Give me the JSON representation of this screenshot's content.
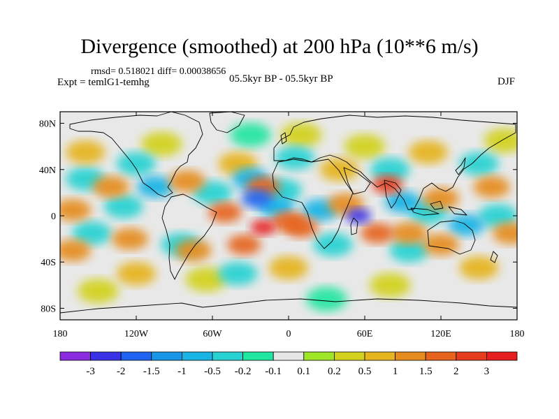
{
  "title": "Divergence (smoothed) at 200 hPa (10**6 m/s)",
  "stats_line": "rmsd= 0.518021 diff= 0.00038656",
  "experiment": "Expt = temlG1-temhg",
  "period": "05.5kyr BP - 05.5kyr BP",
  "season": "DJF",
  "map": {
    "projection": "cylindrical-equidistant",
    "lon_range": [
      -180,
      180
    ],
    "lat_range": [
      -90,
      90
    ],
    "lat_ticks": [
      {
        "lat": 80,
        "label": "80N"
      },
      {
        "lat": 40,
        "label": "40N"
      },
      {
        "lat": 0,
        "label": "0"
      },
      {
        "lat": -40,
        "label": "40S"
      },
      {
        "lat": -80,
        "label": "80S"
      }
    ],
    "lon_ticks": [
      {
        "lon": -180,
        "label": "180"
      },
      {
        "lon": -120,
        "label": "120W"
      },
      {
        "lon": -60,
        "label": "60W"
      },
      {
        "lon": 0,
        "label": "0"
      },
      {
        "lon": 60,
        "label": "60E"
      },
      {
        "lon": 120,
        "label": "120E"
      },
      {
        "lon": 180,
        "label": "180"
      }
    ],
    "background_color": "#e8e8e8",
    "blobs": [
      {
        "lon": -25,
        "lat": 15,
        "level": -2
      },
      {
        "lon": 55,
        "lat": 0,
        "level": -3
      },
      {
        "lon": -30,
        "lat": 32,
        "level": -1
      },
      {
        "lon": -10,
        "lat": 8,
        "level": -1
      },
      {
        "lon": -5,
        "lat": 22,
        "level": -0.5
      },
      {
        "lon": -130,
        "lat": 8,
        "level": -0.5
      },
      {
        "lon": -155,
        "lat": -15,
        "level": -0.5
      },
      {
        "lon": -105,
        "lat": 25,
        "level": -1
      },
      {
        "lon": -60,
        "lat": 20,
        "level": -0.5
      },
      {
        "lon": 25,
        "lat": 5,
        "level": -1
      },
      {
        "lon": 90,
        "lat": 12,
        "level": -1
      },
      {
        "lon": 110,
        "lat": 3,
        "level": -0.5
      },
      {
        "lon": 140,
        "lat": -8,
        "level": -1
      },
      {
        "lon": 165,
        "lat": 0,
        "level": -0.5
      },
      {
        "lon": 35,
        "lat": -25,
        "level": -0.5
      },
      {
        "lon": 95,
        "lat": -30,
        "level": -0.5
      },
      {
        "lon": -85,
        "lat": -25,
        "level": -0.5
      },
      {
        "lon": -40,
        "lat": -50,
        "level": -0.5
      },
      {
        "lon": -160,
        "lat": 32,
        "level": -0.5
      },
      {
        "lon": -120,
        "lat": 45,
        "level": -0.5
      },
      {
        "lon": 5,
        "lat": 50,
        "level": -0.5
      },
      {
        "lon": 80,
        "lat": 40,
        "level": -0.5
      },
      {
        "lon": 150,
        "lat": 45,
        "level": -0.5
      },
      {
        "lon": -20,
        "lat": -10,
        "level": 3
      },
      {
        "lon": -20,
        "lat": 25,
        "level": 1.5
      },
      {
        "lon": 10,
        "lat": -10,
        "level": 1.5
      },
      {
        "lon": 0,
        "lat": -5,
        "level": 1.5
      },
      {
        "lon": 78,
        "lat": 27,
        "level": 2
      },
      {
        "lon": 70,
        "lat": -15,
        "level": 1.5
      },
      {
        "lon": 45,
        "lat": 10,
        "level": 1
      },
      {
        "lon": -50,
        "lat": 3,
        "level": 1.5
      },
      {
        "lon": -35,
        "lat": -25,
        "level": 1.5
      },
      {
        "lon": -75,
        "lat": -30,
        "level": 1
      },
      {
        "lon": -80,
        "lat": 30,
        "level": 1
      },
      {
        "lon": -140,
        "lat": 25,
        "level": 1
      },
      {
        "lon": -170,
        "lat": 5,
        "level": 1
      },
      {
        "lon": -170,
        "lat": -30,
        "level": 1
      },
      {
        "lon": -125,
        "lat": -20,
        "level": 1
      },
      {
        "lon": 120,
        "lat": -25,
        "level": 1
      },
      {
        "lon": 160,
        "lat": 25,
        "level": 1
      },
      {
        "lon": 175,
        "lat": -15,
        "level": 1
      },
      {
        "lon": 95,
        "lat": -15,
        "level": 1
      },
      {
        "lon": 120,
        "lat": 15,
        "level": 1
      },
      {
        "lon": 40,
        "lat": 40,
        "level": 0.5
      },
      {
        "lon": -40,
        "lat": 45,
        "level": 0.5
      },
      {
        "lon": 110,
        "lat": 55,
        "level": 0.5
      },
      {
        "lon": -160,
        "lat": 55,
        "level": 0.5
      },
      {
        "lon": 0,
        "lat": -45,
        "level": 0.5
      },
      {
        "lon": 150,
        "lat": -45,
        "level": 0.5
      },
      {
        "lon": -120,
        "lat": -50,
        "level": 0.5
      },
      {
        "lon": -65,
        "lat": -55,
        "level": 0.2
      },
      {
        "lon": 60,
        "lat": 60,
        "level": 0.2
      },
      {
        "lon": -100,
        "lat": 62,
        "level": 0.2
      },
      {
        "lon": 10,
        "lat": 70,
        "level": 0.2
      },
      {
        "lon": 170,
        "lat": 65,
        "level": 0.2
      },
      {
        "lon": 80,
        "lat": -60,
        "level": 0.2
      },
      {
        "lon": -150,
        "lat": -65,
        "level": 0.2
      },
      {
        "lon": 30,
        "lat": -72,
        "level": -0.2
      },
      {
        "lon": -30,
        "lat": 70,
        "level": -0.2
      }
    ]
  },
  "colorbar": {
    "colors": [
      "#8a2be2",
      "#3a32e6",
      "#1e64f0",
      "#1896e6",
      "#18b4e6",
      "#28d2d2",
      "#20e6a0",
      "#e6e6e6",
      "#a0e628",
      "#d2d21e",
      "#e6b41e",
      "#e68c1e",
      "#e6641e",
      "#e63c1e",
      "#e61e1e"
    ],
    "labels": [
      "-3",
      "-2",
      "-1.5",
      "-1",
      "-0.5",
      "-0.2",
      "-0.1",
      "0.1",
      "0.2",
      "0.5",
      "1",
      "1.5",
      "2",
      "3"
    ]
  }
}
